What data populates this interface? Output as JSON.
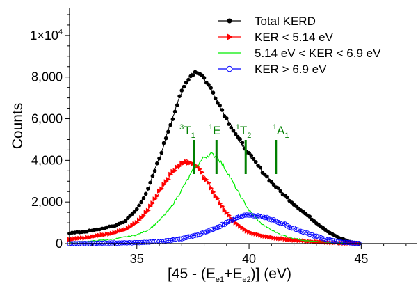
{
  "chart_data": {
    "type": "line",
    "xlabel_parts": [
      "[45 - (E",
      "e1",
      "+E",
      "e2",
      ")] (eV)"
    ],
    "ylabel": "Counts",
    "xlim": [
      32,
      47.5
    ],
    "ylim": [
      0,
      11300
    ],
    "x_ticks": [
      35,
      40,
      45
    ],
    "y_ticks": [
      {
        "value": 0,
        "label": "0"
      },
      {
        "value": 2000,
        "label": "2,000"
      },
      {
        "value": 4000,
        "label": "4,000"
      },
      {
        "value": 6000,
        "label": "6,000"
      },
      {
        "value": 8000,
        "label": "8,000"
      }
    ],
    "y_top_label": {
      "value": 10000,
      "mantissa": "1×10",
      "exponent": "4"
    },
    "grid": false,
    "legend_position": "top-right",
    "series": [
      {
        "name": "Total KERD",
        "color": "#000000",
        "marker": "filled-circle",
        "x": [
          32.0,
          33.0,
          34.0,
          34.5,
          35.0,
          35.5,
          36.0,
          36.5,
          37.0,
          37.3,
          37.6,
          37.8,
          38.0,
          38.3,
          38.6,
          39.0,
          39.5,
          40.0,
          40.5,
          41.0,
          41.5,
          42.0,
          42.5,
          43.0,
          43.5,
          44.0,
          44.5,
          45.0
        ],
        "values": [
          500,
          620,
          850,
          1100,
          1650,
          2600,
          4100,
          5750,
          7300,
          7950,
          8250,
          8200,
          7950,
          7450,
          6850,
          6000,
          5100,
          4300,
          3600,
          2950,
          2400,
          1900,
          1450,
          1000,
          600,
          280,
          80,
          0
        ]
      },
      {
        "name": "KER < 5.14 eV",
        "color": "#ff0000",
        "marker": "filled-triangle-right",
        "x": [
          32.0,
          33.0,
          34.0,
          34.5,
          35.0,
          35.5,
          36.0,
          36.5,
          37.0,
          37.2,
          37.5,
          37.8,
          38.0,
          38.3,
          38.6,
          39.0,
          39.5,
          40.0,
          40.5,
          41.0,
          41.5,
          42.0,
          43.0,
          44.0,
          45.0
        ],
        "values": [
          200,
          320,
          520,
          700,
          1000,
          1600,
          2500,
          3300,
          3850,
          3950,
          3850,
          3550,
          3200,
          2700,
          2150,
          1450,
          900,
          550,
          400,
          300,
          230,
          160,
          80,
          30,
          0
        ]
      },
      {
        "name": "5.14 eV < KER < 6.9 eV",
        "color": "#00ee00",
        "marker": "none",
        "x": [
          32.0,
          33.0,
          34.0,
          35.0,
          35.5,
          36.0,
          36.5,
          37.0,
          37.5,
          38.0,
          38.3,
          38.6,
          39.0,
          39.5,
          40.0,
          40.5,
          41.0,
          41.5,
          42.0,
          42.5,
          43.0,
          44.0,
          45.0
        ],
        "values": [
          60,
          120,
          220,
          420,
          650,
          1100,
          1700,
          2600,
          3500,
          4150,
          4300,
          4150,
          3500,
          2500,
          1600,
          1000,
          650,
          400,
          250,
          150,
          90,
          30,
          0
        ]
      },
      {
        "name": "KER > 6.9 eV",
        "color": "#0000ff",
        "marker": "open-circle",
        "x": [
          32.0,
          33.0,
          34.0,
          35.0,
          36.0,
          36.5,
          37.0,
          37.5,
          38.0,
          38.5,
          39.0,
          39.5,
          39.8,
          40.0,
          40.5,
          41.0,
          41.5,
          42.0,
          42.5,
          43.0,
          43.5,
          44.0,
          44.5,
          45.0
        ],
        "values": [
          0,
          10,
          25,
          50,
          100,
          160,
          240,
          360,
          520,
          740,
          1000,
          1280,
          1370,
          1380,
          1320,
          1170,
          960,
          720,
          520,
          340,
          190,
          90,
          30,
          0
        ]
      }
    ],
    "state_markers": [
      {
        "x": 37.55,
        "pre": "3",
        "main": "T",
        "sub": "1",
        "label_x": 36.9
      },
      {
        "x": 38.55,
        "pre": "1",
        "main": "E",
        "sub": "",
        "label_x": 38.2
      },
      {
        "x": 39.85,
        "pre": "1",
        "main": "T",
        "sub": "2",
        "label_x": 39.4
      },
      {
        "x": 41.2,
        "pre": "1",
        "main": "A",
        "sub": "1",
        "label_x": 41.05
      }
    ],
    "state_marker_color": "#008000"
  }
}
